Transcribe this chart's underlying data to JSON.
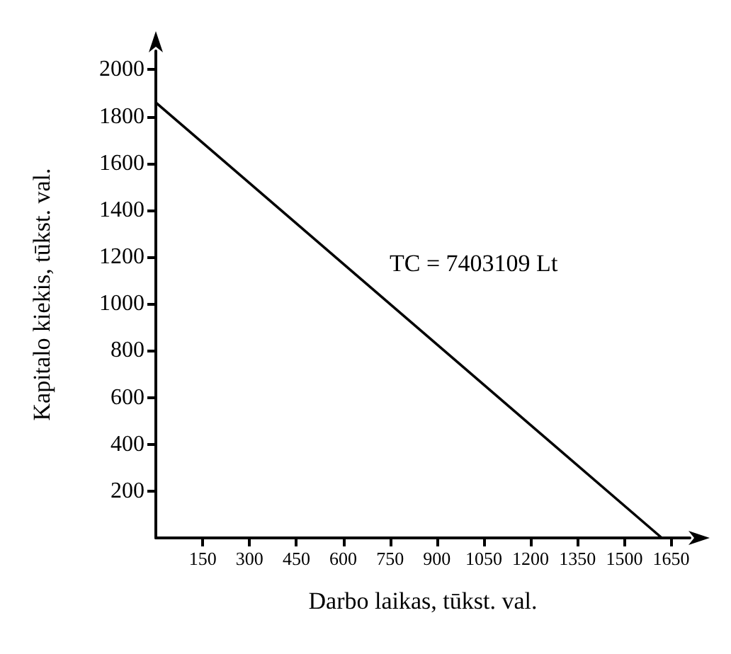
{
  "chart_data": {
    "type": "line",
    "xlabel": "Darbo laikas, tūkst. val.",
    "ylabel": "Kapitalo kiekis, tūkst. val.",
    "x": [
      0,
      1620
    ],
    "series": [
      {
        "color": "#000000",
        "values": [
          1860,
          0
        ]
      }
    ],
    "xlim": [
      0,
      1710
    ],
    "ylim": [
      0,
      2080
    ],
    "xticks": [
      150,
      300,
      450,
      600,
      750,
      900,
      1050,
      1200,
      1350,
      1500,
      1650
    ],
    "yticks": [
      200,
      400,
      600,
      800,
      1000,
      1200,
      1400,
      1600,
      1800,
      2000
    ],
    "annotations": [
      "TC = 7403109 Lt"
    ],
    "grid": false,
    "marker": "none",
    "line_style": "solid"
  }
}
